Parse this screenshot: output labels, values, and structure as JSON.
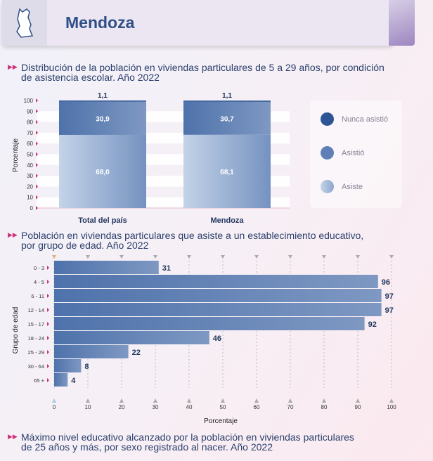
{
  "header": {
    "title": "Mendoza",
    "icon": "province-map-icon"
  },
  "section1": {
    "title_line1": "Distribución de la población en viviendas particulares de 5 a 29 años, por condición",
    "title_line2": "de asistencia escolar. Año 2022"
  },
  "section2": {
    "title_line1": "Población en viviendas particulares que asiste a un establecimiento educativo,",
    "title_line2": "por grupo de edad. Año 2022"
  },
  "section3": {
    "title_line1": "Máximo nivel educativo alcanzado por la población en viviendas particulares",
    "title_line2": "de 25 años y más, por sexo registrado al nacer. Año 2022"
  },
  "legend": [
    {
      "label": "Nunca asistió",
      "color": "#2d5596"
    },
    {
      "label": "Asistió",
      "color": "#5f80b6"
    },
    {
      "label": "Asiste",
      "color": "#a9bfdc"
    }
  ],
  "chart_data": [
    {
      "type": "bar",
      "stacked": true,
      "categories": [
        "Total del país",
        "Mendoza"
      ],
      "series": [
        {
          "name": "Asiste",
          "values": [
            68.0,
            68.1
          ],
          "labels": [
            "68,0",
            "68,1"
          ]
        },
        {
          "name": "Asistió",
          "values": [
            30.9,
            30.7
          ],
          "labels": [
            "30,9",
            "30,7"
          ]
        },
        {
          "name": "Nunca asistió",
          "values": [
            1.1,
            1.1
          ],
          "labels": [
            "1,1",
            "1,1"
          ]
        }
      ],
      "ylabel": "Porcentaje",
      "ylim": [
        0,
        100
      ],
      "yticks": [
        "0",
        "10",
        "20",
        "30",
        "40",
        "50",
        "60",
        "70",
        "80",
        "90",
        "100"
      ],
      "legend": "right"
    },
    {
      "type": "bar",
      "orientation": "horizontal",
      "categories": [
        "0 - 3",
        "4 - 5",
        "6 - 11",
        "12 - 14",
        "15 - 17",
        "18 - 24",
        "25 - 29",
        "30 - 64",
        "65 +"
      ],
      "values": [
        31,
        96,
        97,
        97,
        92,
        46,
        22,
        8,
        4
      ],
      "xlabel": "Porcentaje",
      "ylabel": "Grupo de edad",
      "xlim": [
        0,
        100
      ],
      "xticks": [
        "0",
        "10",
        "20",
        "30",
        "40",
        "50",
        "60",
        "70",
        "80",
        "90",
        "100"
      ],
      "grid": true
    }
  ]
}
